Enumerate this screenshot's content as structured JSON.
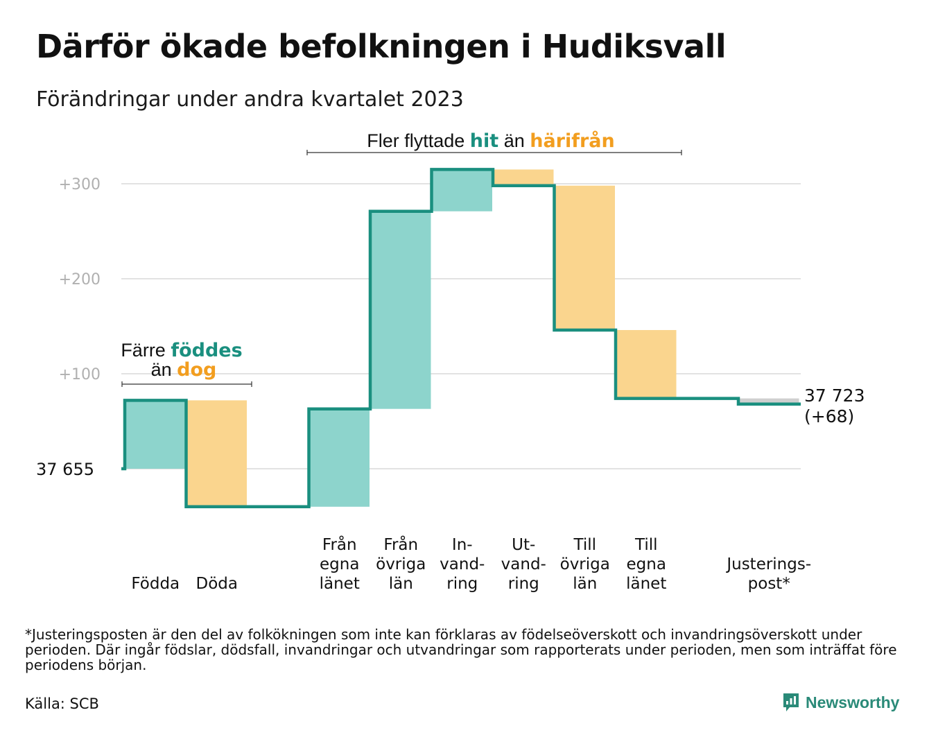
{
  "title": "Därför ökade befolkningen i Hudiksvall",
  "subtitle": "Förändringar under andra kvartalet 2023",
  "chart_data": {
    "type": "waterfall",
    "start_value": 37655,
    "start_label": "37  655",
    "end_value": 37723,
    "end_label": "37 723",
    "end_change_label": "(+68)",
    "y_ticks": [
      {
        "value": 100,
        "label": "+100"
      },
      {
        "value": 200,
        "label": "+200"
      },
      {
        "value": 300,
        "label": "+300"
      }
    ],
    "ylim": [
      -65,
      330
    ],
    "grid": true,
    "steps": [
      {
        "label_lines": [
          "Födda"
        ],
        "change": 72,
        "kind": "inflow"
      },
      {
        "label_lines": [
          "Döda"
        ],
        "change": -112,
        "kind": "outflow"
      },
      {
        "label_lines": [
          ""
        ],
        "change": 0,
        "kind": "none"
      },
      {
        "label_lines": [
          "Från",
          "egna",
          "länet"
        ],
        "change": 103,
        "kind": "inflow"
      },
      {
        "label_lines": [
          "Från",
          "övriga",
          "län"
        ],
        "change": 208,
        "kind": "inflow"
      },
      {
        "label_lines": [
          "In-",
          "vand-",
          "ring"
        ],
        "change": 44,
        "kind": "inflow"
      },
      {
        "label_lines": [
          "Ut-",
          "vand-",
          "ring"
        ],
        "change": -17,
        "kind": "outflow"
      },
      {
        "label_lines": [
          "Till",
          "övriga",
          "län"
        ],
        "change": -152,
        "kind": "outflow"
      },
      {
        "label_lines": [
          "Till",
          "egna",
          "länet"
        ],
        "change": -72,
        "kind": "outflow"
      },
      {
        "label_lines": [
          ""
        ],
        "change": 0,
        "kind": "none"
      },
      {
        "label_lines": [
          "Justerings-",
          "post*"
        ],
        "change": -6,
        "kind": "adjustment"
      }
    ],
    "annotations": {
      "births": {
        "line1": "Färre",
        "highlight1": "föddes",
        "line2": "än",
        "highlight2": "dog"
      },
      "moves": {
        "text1": "Fler flyttade",
        "highlight1": "hit",
        "text2": "än",
        "highlight2": "härifrån"
      }
    },
    "colors": {
      "inflow": "#8dd4cc",
      "outflow": "#fad58e",
      "adjustment": "#cfcfcf",
      "line": "#1a8f7f",
      "teal_text": "#1a8f7f",
      "orange_text": "#f29e1f",
      "grid": "#e2e2e2",
      "tick_text": "#b0b0b0"
    }
  },
  "footnote": "*Justeringsposten är den del av folkökningen som inte kan förklaras av födelseöverskott och invandringsöverskott under perioden. Där ingår födslar, dödsfall, invandringar och utvandringar som rapporterats under perioden, men som inträffat före periodens början.",
  "source": "Källa: SCB",
  "brand": {
    "name": "Newsworthy",
    "icon": "newsworthy-logo-icon"
  }
}
